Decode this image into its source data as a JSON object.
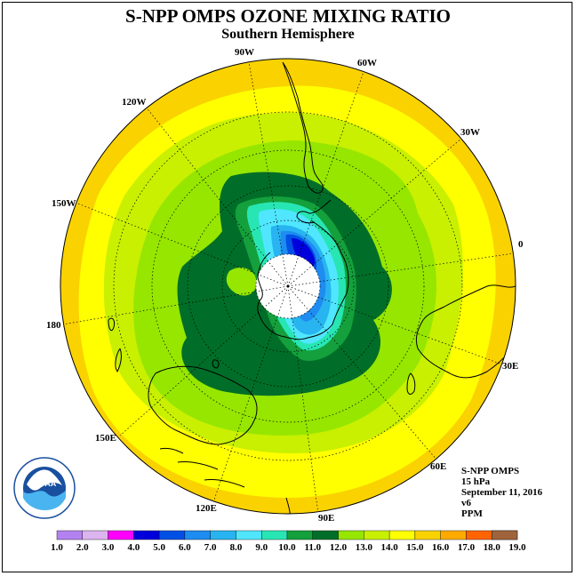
{
  "title": "S-NPP OMPS OZONE MIXING RATIO",
  "subtitle": "Southern Hemisphere",
  "longitude_labels": {
    "w90": "90W",
    "w60": "60W",
    "w30": "30W",
    "e0": "0",
    "e30": "30E",
    "e60": "60E",
    "e90": "90E",
    "e120": "120E",
    "e150": "150E",
    "e180": "180",
    "w150": "150W",
    "w120": "120W"
  },
  "info": {
    "instrument": "S-NPP OMPS",
    "level": "15 hPa",
    "date": "September 11, 2016",
    "version": "v6",
    "units": "PPM"
  },
  "logo": {
    "text": "NOAA",
    "ring_text": "NATIONAL OCEANIC AND ATMOSPHERIC ADMINISTRATION · U.S. DEPARTMENT OF COMMERCE"
  },
  "colorbar": {
    "ticks": [
      "1.0",
      "2.0",
      "3.0",
      "4.0",
      "5.0",
      "6.0",
      "7.0",
      "8.0",
      "9.0",
      "10.0",
      "11.0",
      "12.0",
      "13.0",
      "14.0",
      "15.0",
      "16.0",
      "17.0",
      "18.0",
      "19.0"
    ],
    "colors": [
      "#b482f0",
      "#dcb4f0",
      "#ff00ff",
      "#0000dc",
      "#0050e6",
      "#1e8cf0",
      "#28b4f0",
      "#50e6ff",
      "#28e6b4",
      "#14a03c",
      "#006e28",
      "#96e600",
      "#c8f000",
      "#ffff00",
      "#fad200",
      "#ffaa00",
      "#ff6400",
      "#ff0000",
      "#a0643c"
    ]
  },
  "map": {
    "projection": "south polar stereographic",
    "pole_data_gap": "white (no data)",
    "min_mixing_ratio_ppm": 4.0,
    "outer_ring_ppm": "14-15"
  }
}
